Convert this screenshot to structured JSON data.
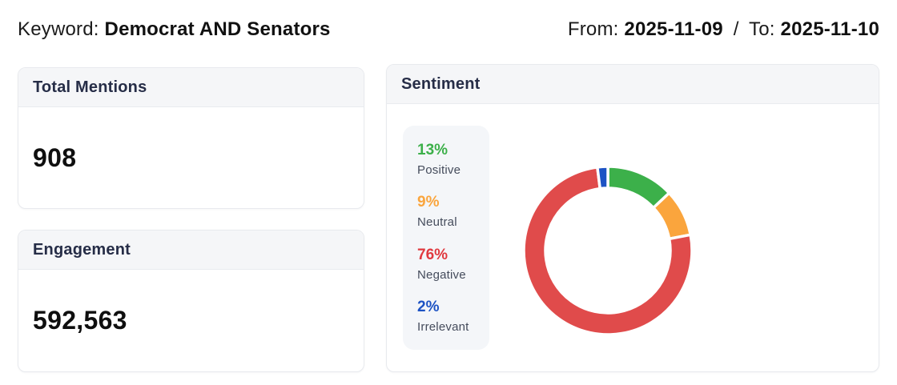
{
  "header": {
    "keyword_label": "Keyword:",
    "keyword_value": "Democrat AND Senators",
    "from_label": "From:",
    "from_date": "2025-11-09",
    "separator": "/",
    "to_label": "To:",
    "to_date": "2025-11-10"
  },
  "cards": {
    "total_mentions": {
      "title": "Total Mentions",
      "value": "908"
    },
    "engagement": {
      "title": "Engagement",
      "value": "592,563"
    },
    "sentiment": {
      "title": "Sentiment"
    }
  },
  "sentiment_legend": [
    {
      "pct": "13%",
      "label": "Positive",
      "color": "#3cb04a"
    },
    {
      "pct": "9%",
      "label": "Neutral",
      "color": "#faa53d"
    },
    {
      "pct": "76%",
      "label": "Negative",
      "color": "#e0393f"
    },
    {
      "pct": "2%",
      "label": "Irrelevant",
      "color": "#1d53c4"
    }
  ],
  "chart_data": {
    "type": "pie",
    "title": "Sentiment",
    "donut": true,
    "categories": [
      "Positive",
      "Neutral",
      "Negative",
      "Irrelevant"
    ],
    "values": [
      13,
      9,
      76,
      2
    ],
    "unit": "%",
    "colors": [
      "#3cb04a",
      "#faa53d",
      "#e04b4b",
      "#1d53c4"
    ],
    "start_angle_deg": 0,
    "direction": "clockwise",
    "legend_position": "left",
    "segment_gap_color": "#ffffff"
  }
}
